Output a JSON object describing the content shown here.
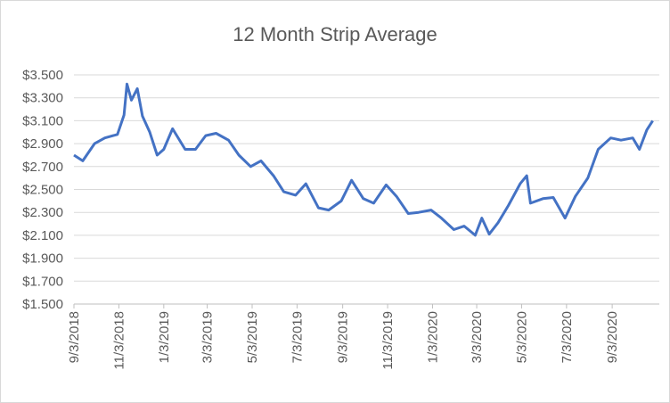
{
  "chart_data": {
    "type": "line",
    "title": "12 Month Strip Average",
    "x": [
      "9/3/2018",
      "9/15/2018",
      "10/1/2018",
      "10/15/2018",
      "11/1/2018",
      "11/10/2018",
      "11/14/2018",
      "11/20/2018",
      "11/28/2018",
      "12/5/2018",
      "12/15/2018",
      "12/25/2018",
      "1/3/2019",
      "1/15/2019",
      "2/1/2019",
      "2/15/2019",
      "3/1/2019",
      "3/15/2019",
      "4/1/2019",
      "4/15/2019",
      "5/1/2019",
      "5/15/2019",
      "6/1/2019",
      "6/15/2019",
      "7/1/2019",
      "7/15/2019",
      "8/1/2019",
      "8/15/2019",
      "9/1/2019",
      "9/15/2019",
      "10/1/2019",
      "10/15/2019",
      "11/1/2019",
      "11/15/2019",
      "12/1/2019",
      "12/15/2019",
      "1/1/2020",
      "1/15/2020",
      "2/1/2020",
      "2/15/2020",
      "3/1/2020",
      "3/10/2020",
      "3/20/2020",
      "4/1/2020",
      "4/15/2020",
      "5/1/2020",
      "5/10/2020",
      "5/15/2020",
      "6/1/2020",
      "6/15/2020",
      "7/1/2020",
      "7/15/2020",
      "8/1/2020",
      "8/15/2020",
      "9/1/2020",
      "9/15/2020",
      "10/1/2020",
      "10/10/2020",
      "10/20/2020",
      "10/28/2020"
    ],
    "series": [
      {
        "name": "12 Month Strip Average",
        "color": "#4472c4",
        "values": [
          2.8,
          2.75,
          2.9,
          2.95,
          2.98,
          3.15,
          3.42,
          3.28,
          3.38,
          3.14,
          3.0,
          2.8,
          2.85,
          3.03,
          2.85,
          2.85,
          2.97,
          2.99,
          2.93,
          2.8,
          2.7,
          2.75,
          2.62,
          2.48,
          2.45,
          2.55,
          2.34,
          2.32,
          2.4,
          2.58,
          2.42,
          2.38,
          2.54,
          2.44,
          2.29,
          2.3,
          2.32,
          2.25,
          2.15,
          2.18,
          2.1,
          2.25,
          2.11,
          2.21,
          2.36,
          2.55,
          2.62,
          2.38,
          2.42,
          2.43,
          2.25,
          2.44,
          2.6,
          2.85,
          2.95,
          2.93,
          2.95,
          2.85,
          3.02,
          3.1
        ]
      }
    ],
    "xlim": [
      "9/3/2018",
      "11/6/2020"
    ],
    "xticks": [
      "9/3/2018",
      "11/3/2018",
      "1/3/2019",
      "3/3/2019",
      "5/3/2019",
      "7/3/2019",
      "9/3/2019",
      "11/3/2019",
      "1/3/2020",
      "3/3/2020",
      "5/3/2020",
      "7/3/2020",
      "9/3/2020"
    ],
    "ylim": [
      1.5,
      3.5
    ],
    "yticks": [
      {
        "value": 1.5,
        "label": "$1.500"
      },
      {
        "value": 1.7,
        "label": "$1.700"
      },
      {
        "value": 1.9,
        "label": "$1.900"
      },
      {
        "value": 2.1,
        "label": "$2.100"
      },
      {
        "value": 2.3,
        "label": "$2.300"
      },
      {
        "value": 2.5,
        "label": "$2.500"
      },
      {
        "value": 2.7,
        "label": "$2.700"
      },
      {
        "value": 2.9,
        "label": "$2.900"
      },
      {
        "value": 3.1,
        "label": "$3.100"
      },
      {
        "value": 3.3,
        "label": "$3.300"
      },
      {
        "value": 3.5,
        "label": "$3.500"
      }
    ],
    "grid": true
  }
}
